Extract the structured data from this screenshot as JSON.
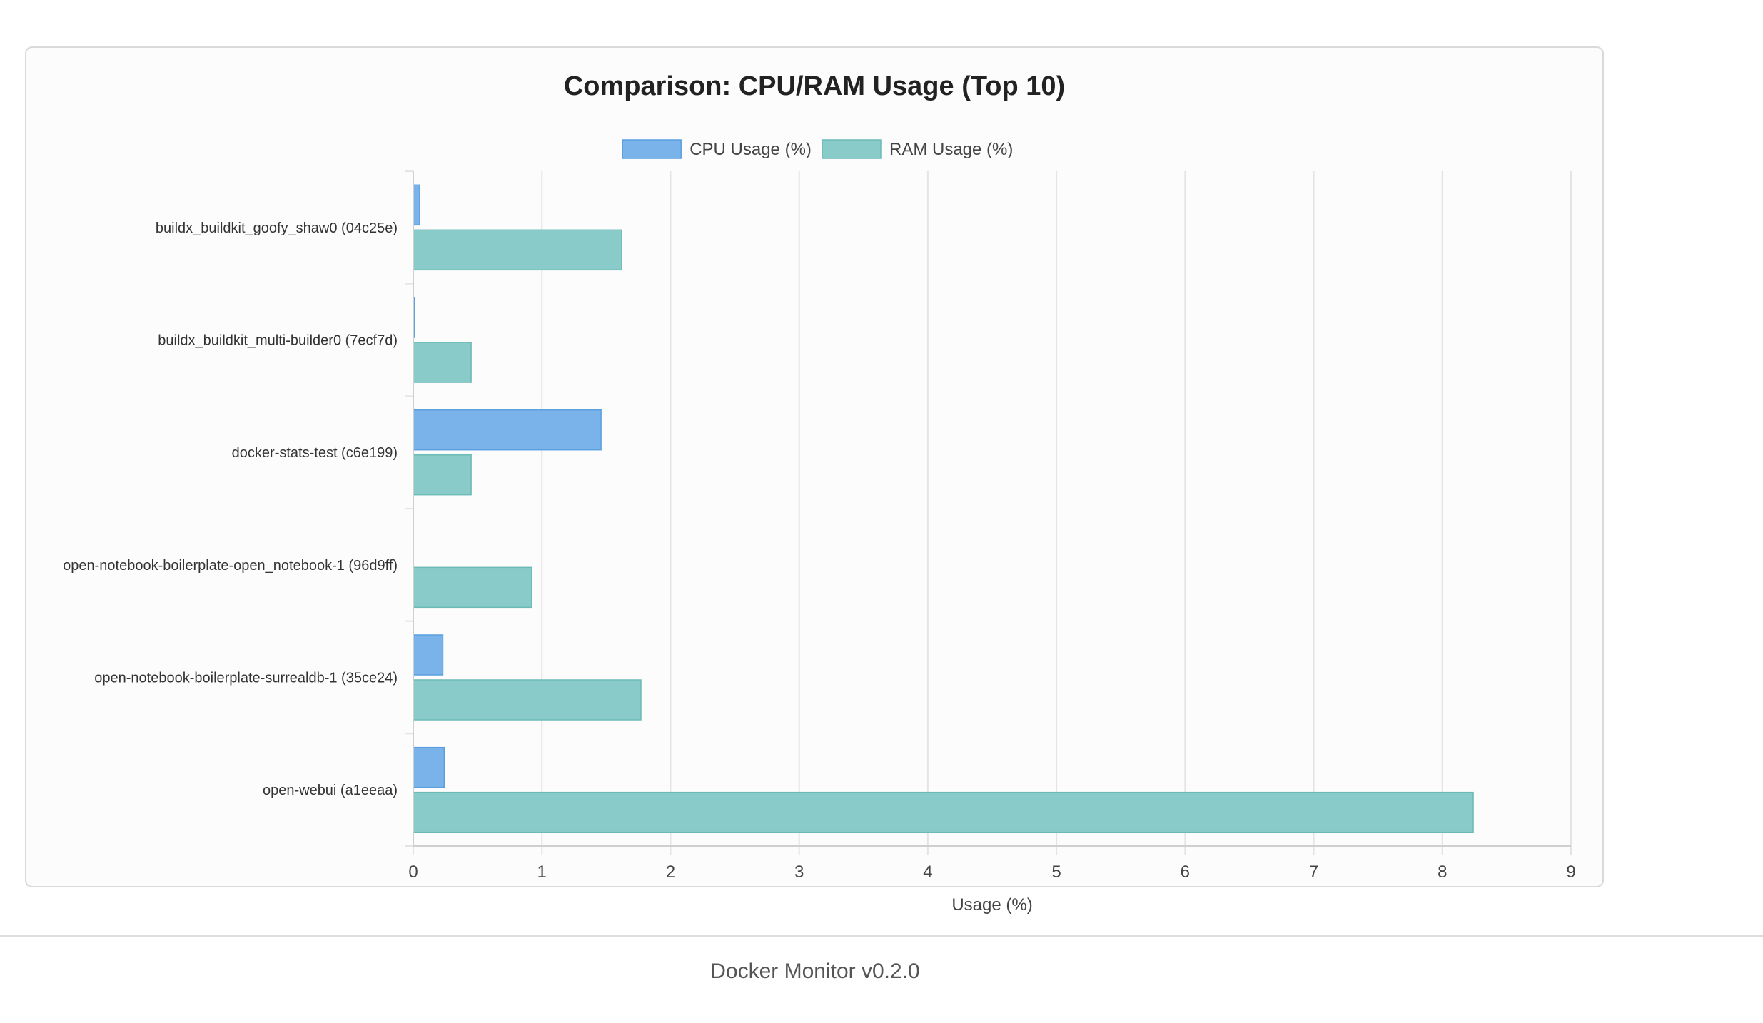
{
  "footer": {
    "text": "Docker Monitor v0.2.0"
  },
  "colors": {
    "cpu_fill": "#79b3e9",
    "cpu_stroke": "#5a9fe0",
    "ram_fill": "#88cbc8",
    "ram_stroke": "#6bbab6",
    "grid": "#e4e4e4",
    "axis": "#cfcfcf",
    "text": "#222222"
  },
  "chart_data": {
    "type": "bar",
    "orientation": "horizontal",
    "title": "Comparison: CPU/RAM Usage (Top 10)",
    "xlabel": "Usage (%)",
    "ylabel": "",
    "xlim": [
      0,
      9
    ],
    "x_ticks": [
      "0",
      "1",
      "2",
      "3",
      "4",
      "5",
      "6",
      "7",
      "8",
      "9"
    ],
    "grid": true,
    "legend_position": "top-center",
    "categories": [
      "buildx_buildkit_goofy_shaw0 (04c25e)",
      "buildx_buildkit_multi-builder0 (7ecf7d)",
      "docker-stats-test (c6e199)",
      "open-notebook-boilerplate-open_notebook-1 (96d9ff)",
      "open-notebook-boilerplate-surrealdb-1 (35ce24)",
      "open-webui (a1eeaa)"
    ],
    "series": [
      {
        "name": "CPU Usage (%)",
        "values": [
          0.05,
          0.01,
          1.46,
          0.0,
          0.23,
          0.24
        ]
      },
      {
        "name": "RAM Usage (%)",
        "values": [
          1.62,
          0.45,
          0.45,
          0.92,
          1.77,
          8.24
        ]
      }
    ]
  }
}
